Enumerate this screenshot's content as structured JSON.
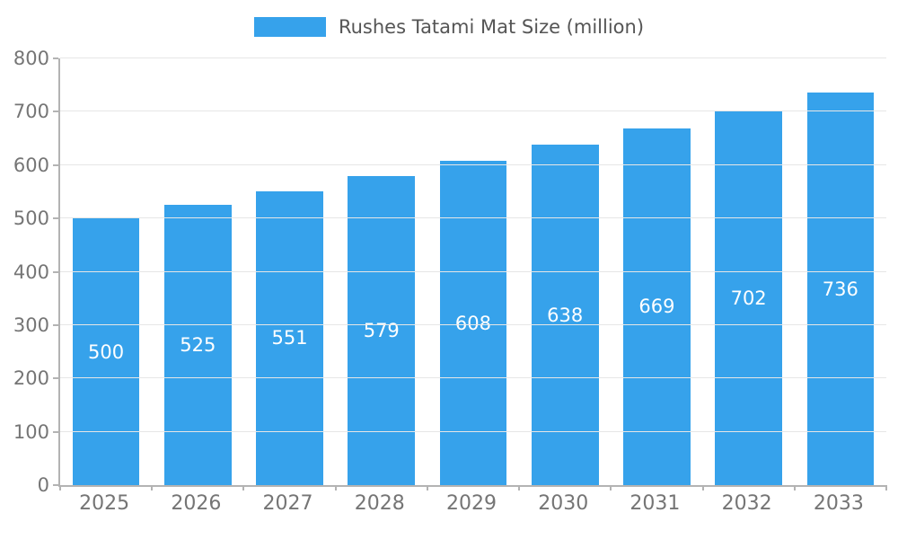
{
  "legend": {
    "label": "Rushes Tatami Mat Size (million)"
  },
  "colors": {
    "bar": "#36A2EB",
    "value_label": "#ffffff",
    "axis_text": "#757575",
    "grid": "#e6e6e6"
  },
  "chart_data": {
    "type": "bar",
    "title": "Rushes Tatami Mat Size (million)",
    "categories": [
      "2025",
      "2026",
      "2027",
      "2028",
      "2029",
      "2030",
      "2031",
      "2032",
      "2033"
    ],
    "values": [
      500,
      525,
      551,
      579,
      608,
      638,
      669,
      702,
      736
    ],
    "xlabel": "",
    "ylabel": "",
    "ylim": [
      0,
      800
    ],
    "ytick_step": 100,
    "grid": true,
    "legend_position": "top",
    "value_labels": "centered-inside-bars"
  }
}
